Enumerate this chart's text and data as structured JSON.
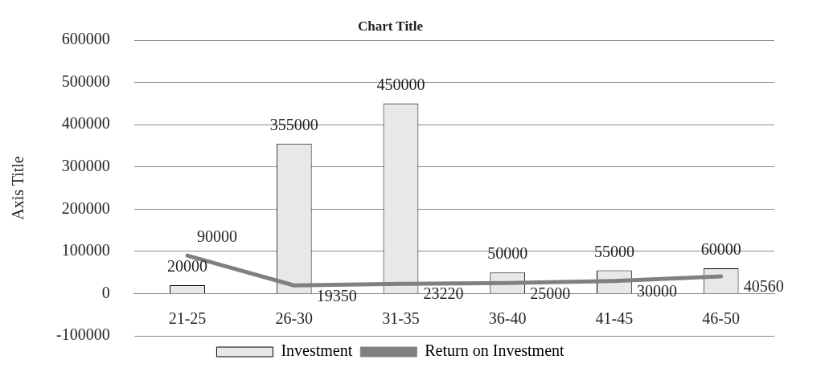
{
  "chart_data": {
    "type": "bar",
    "title": "Chart Title",
    "ylabel": "Axis Title",
    "categories": [
      "21-25",
      "26-30",
      "31-35",
      "36-40",
      "41-45",
      "46-50"
    ],
    "series": [
      {
        "name": "Investment",
        "color": "#e8e8e8",
        "values": [
          20000,
          355000,
          450000,
          50000,
          55000,
          60000
        ]
      },
      {
        "name": "Return on Investment",
        "type": "line",
        "color": "#808080",
        "values": [
          90000,
          19350,
          23220,
          25000,
          30000,
          40560
        ]
      }
    ],
    "ylim": [
      -100000,
      600000
    ],
    "yticks": [
      -100000,
      0,
      100000,
      200000,
      300000,
      400000,
      500000,
      600000
    ],
    "grid": "y",
    "legend": "bottom",
    "data_labels": true,
    "marker": "none"
  }
}
